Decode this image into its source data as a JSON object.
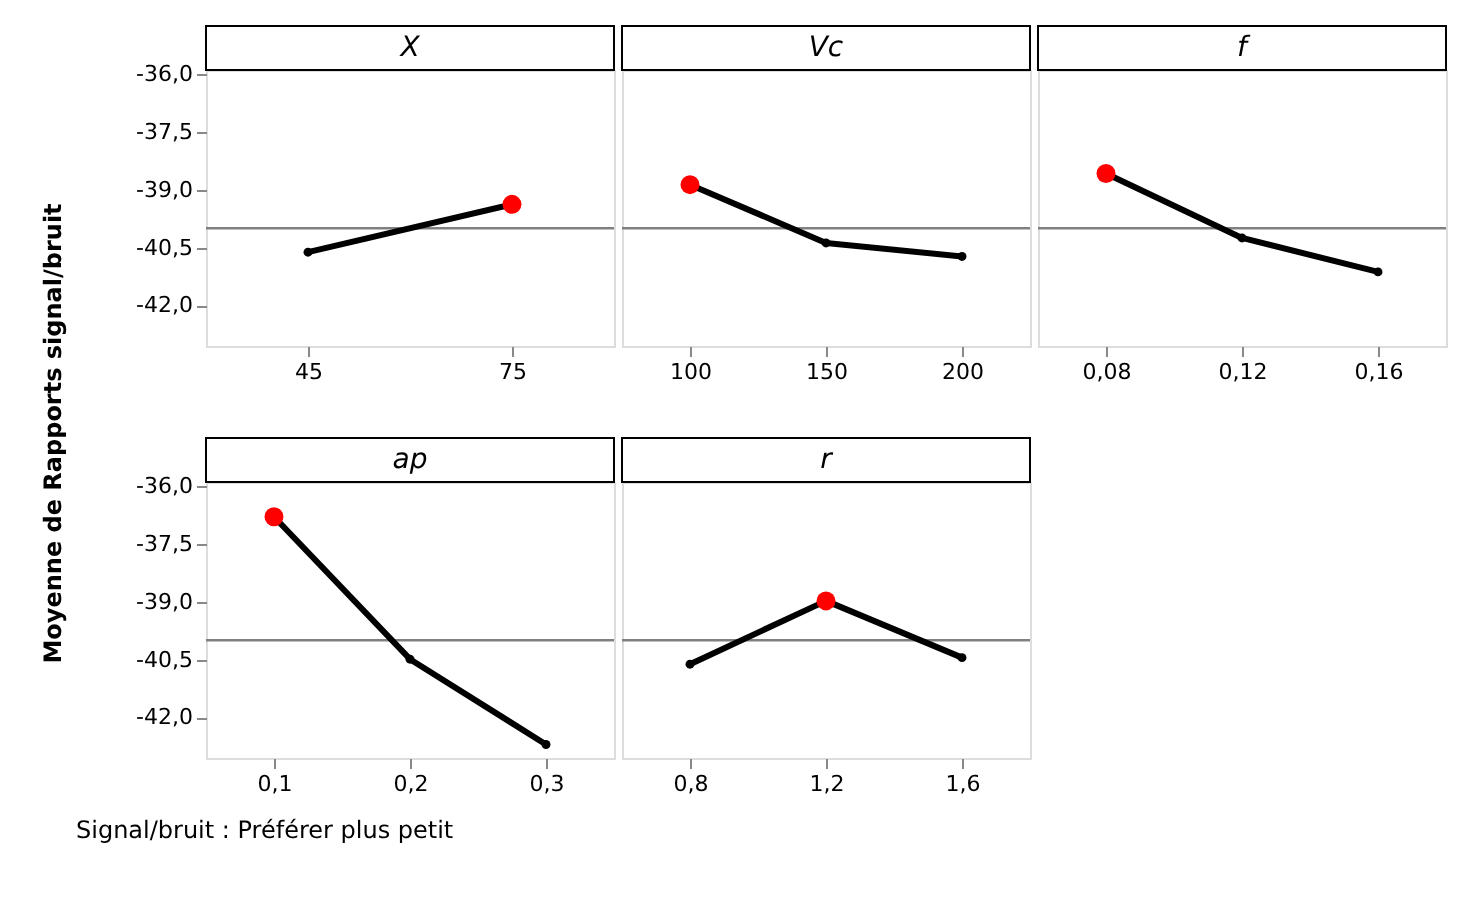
{
  "chart_data": [
    {
      "type": "line",
      "title": "X",
      "ylabel": "Moyenne de Rapports signal/bruit",
      "categories": [
        "45",
        "75"
      ],
      "series": [
        {
          "color": "#000000",
          "values": [
            -40.62,
            -39.38
          ],
          "colors": [
            "#000000",
            "#ff0000"
          ]
        }
      ],
      "ylim": [
        -43.05,
        -35.9
      ],
      "yticks": [
        {
          "value": -36,
          "label": "-36,0"
        },
        {
          "value": -37.5,
          "label": "-37,5"
        },
        {
          "value": -39,
          "label": "-39,0"
        },
        {
          "value": -40.5,
          "label": "-40,5"
        },
        {
          "value": -42,
          "label": "-42,0"
        }
      ],
      "ref_lines": [
        {
          "axis": "y",
          "value": -40.0,
          "color": "#808080"
        }
      ],
      "marker": "circle",
      "grid": false
    },
    {
      "type": "line",
      "title": "Vc",
      "categories": [
        "100",
        "150",
        "200"
      ],
      "series": [
        {
          "color": "#000000",
          "values": [
            -38.87,
            -40.38,
            -40.73
          ],
          "colors": [
            "#ff0000",
            "#000000",
            "#000000"
          ]
        }
      ],
      "ylim": [
        -43.05,
        -35.9
      ],
      "ref_lines": [
        {
          "axis": "y",
          "value": -40.0,
          "color": "#808080"
        }
      ],
      "marker": "circle",
      "grid": false,
      "tick_labels": "x"
    },
    {
      "type": "line",
      "title": "f",
      "categories": [
        "0,08",
        "0,12",
        "0,16"
      ],
      "series": [
        {
          "color": "#000000",
          "values": [
            -38.58,
            -40.25,
            -41.13
          ],
          "colors": [
            "#ff0000",
            "#000000",
            "#000000"
          ]
        }
      ],
      "ylim": [
        -43.05,
        -35.9
      ],
      "ref_lines": [
        {
          "axis": "y",
          "value": -40.0,
          "color": "#808080"
        }
      ],
      "marker": "circle",
      "grid": false,
      "tick_labels": "x"
    },
    {
      "type": "line",
      "title": "ap",
      "categories": [
        "0,1",
        "0,2",
        "0,3"
      ],
      "series": [
        {
          "color": "#000000",
          "values": [
            -36.8,
            -40.49,
            -42.7
          ],
          "colors": [
            "#ff0000",
            "#000000",
            "#000000"
          ]
        }
      ],
      "ylim": [
        -43.05,
        -35.9
      ],
      "yticks": [
        {
          "value": -36,
          "label": "-36,0"
        },
        {
          "value": -37.5,
          "label": "-37,5"
        },
        {
          "value": -39,
          "label": "-39,0"
        },
        {
          "value": -40.5,
          "label": "-40,5"
        },
        {
          "value": -42,
          "label": "-42,0"
        }
      ],
      "ref_lines": [
        {
          "axis": "y",
          "value": -40.0,
          "color": "#808080"
        }
      ],
      "marker": "circle",
      "grid": false,
      "annotations": [
        "Signal/bruit : Préférer plus petit"
      ]
    },
    {
      "type": "line",
      "title": "r",
      "categories": [
        "0,8",
        "1,2",
        "1,6"
      ],
      "series": [
        {
          "color": "#000000",
          "values": [
            -40.62,
            -38.98,
            -40.45
          ],
          "colors": [
            "#000000",
            "#ff0000",
            "#000000"
          ]
        }
      ],
      "ylim": [
        -43.05,
        -35.9
      ],
      "ref_lines": [
        {
          "axis": "y",
          "value": -40.0,
          "color": "#808080"
        }
      ],
      "marker": "circle",
      "grid": false,
      "tick_labels": "x"
    }
  ]
}
